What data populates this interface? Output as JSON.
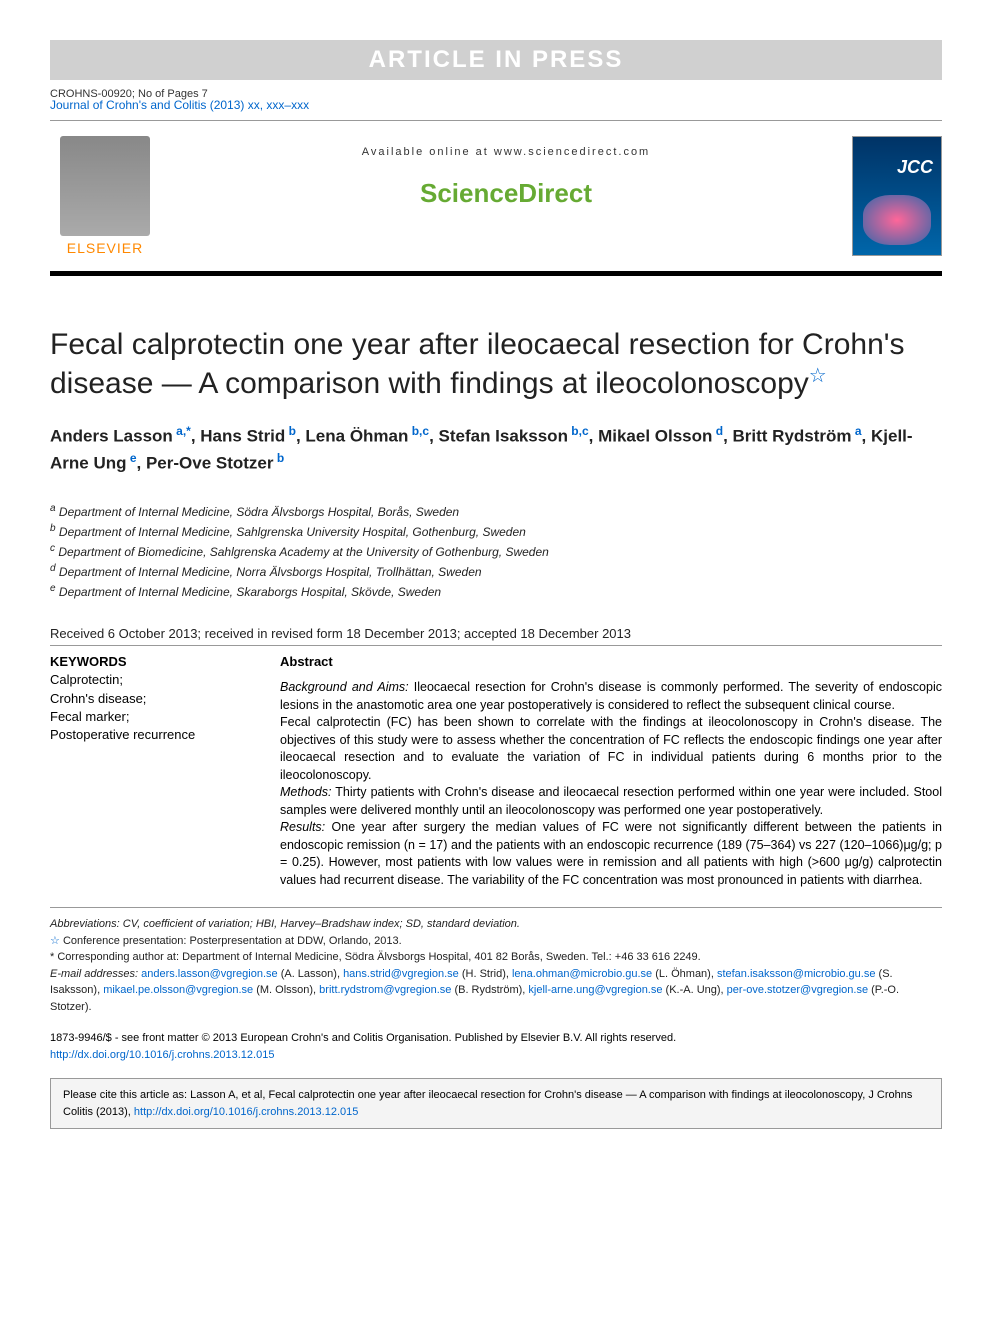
{
  "banner": {
    "text": "ARTICLE IN PRESS",
    "doc_id": "CROHNS-00920; No of Pages 7"
  },
  "journal_ref": "Journal of Crohn's and Colitis (2013) xx, xxx–xxx",
  "header": {
    "available": "Available online at www.sciencedirect.com",
    "brand": "ScienceDirect",
    "publisher": "ELSEVIER"
  },
  "title": "Fecal calprotectin one year after ileocaecal resection for Crohn's disease — A comparison with findings at ileocolonoscopy",
  "authors_html": "Anders Lasson<sup> a,*</sup>, Hans Strid<sup> b</sup>, Lena Öhman<sup> b,c</sup>, Stefan Isaksson<sup> b,c</sup>, Mikael Olsson<sup> d</sup>, Britt Rydström<sup> a</sup>, Kjell-Arne Ung<sup> e</sup>, Per-Ove Stotzer<sup> b</sup>",
  "affiliations": [
    {
      "sup": "a",
      "text": "Department of Internal Medicine, Södra Älvsborgs Hospital, Borås, Sweden"
    },
    {
      "sup": "b",
      "text": "Department of Internal Medicine, Sahlgrenska University Hospital, Gothenburg, Sweden"
    },
    {
      "sup": "c",
      "text": "Department of Biomedicine, Sahlgrenska Academy at the University of Gothenburg, Sweden"
    },
    {
      "sup": "d",
      "text": "Department of Internal Medicine, Norra Älvsborgs Hospital, Trollhättan, Sweden"
    },
    {
      "sup": "e",
      "text": "Department of Internal Medicine, Skaraborgs Hospital, Skövde, Sweden"
    }
  ],
  "dates": "Received 6 October 2013; received in revised form 18 December 2013; accepted 18 December 2013",
  "keywords": {
    "title": "KEYWORDS",
    "items": [
      "Calprotectin;",
      "Crohn's disease;",
      "Fecal marker;",
      "Postoperative recurrence"
    ]
  },
  "abstract": {
    "title": "Abstract",
    "sections": [
      {
        "label": "Background and Aims:",
        "text": " Ileocaecal resection for Crohn's disease is commonly performed. The severity of endoscopic lesions in the anastomotic area one year postoperatively is considered to reflect the subsequent clinical course."
      },
      {
        "label": "",
        "text": "Fecal calprotectin (FC) has been shown to correlate with the findings at ileocolonoscopy in Crohn's disease. The objectives of this study were to assess whether the concentration of FC reflects the endoscopic findings one year after ileocaecal resection and to evaluate the variation of FC in individual patients during 6 months prior to the ileocolonoscopy."
      },
      {
        "label": "Methods:",
        "text": " Thirty patients with Crohn's disease and ileocaecal resection performed within one year were included. Stool samples were delivered monthly until an ileocolonoscopy was performed one year postoperatively."
      },
      {
        "label": "Results:",
        "text": " One year after surgery the median values of FC were not significantly different between the patients in endoscopic remission (n = 17) and the patients with an endoscopic recurrence (189 (75–364) vs 227 (120–1066)μg/g; p = 0.25). However, most patients with low values were in remission and all patients with high (>600 μg/g) calprotectin values had recurrent disease. The variability of the FC concentration was most pronounced in patients with diarrhea."
      }
    ]
  },
  "footnotes": {
    "abbrev": "Abbreviations: CV, coefficient of variation; HBI, Harvey–Bradshaw index; SD, standard deviation.",
    "conf": "Conference presentation: Posterpresentation at DDW, Orlando, 2013.",
    "corresp": "Corresponding author at: Department of Internal Medicine, Södra Älvsborgs Hospital, 401 82 Borås, Sweden. Tel.: +46 33 616 2249.",
    "emails_label": "E-mail addresses:",
    "emails": [
      {
        "addr": "anders.lasson@vgregion.se",
        "name": "(A. Lasson)"
      },
      {
        "addr": "hans.strid@vgregion.se",
        "name": "(H. Strid)"
      },
      {
        "addr": "lena.ohman@microbio.gu.se",
        "name": "(L. Öhman)"
      },
      {
        "addr": "stefan.isaksson@microbio.gu.se",
        "name": "(S. Isaksson)"
      },
      {
        "addr": "mikael.pe.olsson@vgregion.se",
        "name": "(M. Olsson)"
      },
      {
        "addr": "britt.rydstrom@vgregion.se",
        "name": "(B. Rydström)"
      },
      {
        "addr": "kjell-arne.ung@vgregion.se",
        "name": "(K.-A. Ung)"
      },
      {
        "addr": "per-ove.stotzer@vgregion.se",
        "name": "(P.-O. Stotzer)"
      }
    ]
  },
  "copyright": {
    "line": "1873-9946/$ - see front matter © 2013 European Crohn's and Colitis Organisation. Published by Elsevier B.V. All rights reserved.",
    "doi": "http://dx.doi.org/10.1016/j.crohns.2013.12.015"
  },
  "citebox": {
    "text": "Please cite this article as: Lasson A, et al, Fecal calprotectin one year after ileocaecal resection for Crohn's disease — A comparison with findings at ileocolonoscopy, J Crohns Colitis (2013), ",
    "doi": "http://dx.doi.org/10.1016/j.crohns.2013.12.015"
  },
  "colors": {
    "link": "#0066cc",
    "brand_green": "#66aa33",
    "elsevier_orange": "#ff8800",
    "banner_bg": "#d0d0d0"
  }
}
